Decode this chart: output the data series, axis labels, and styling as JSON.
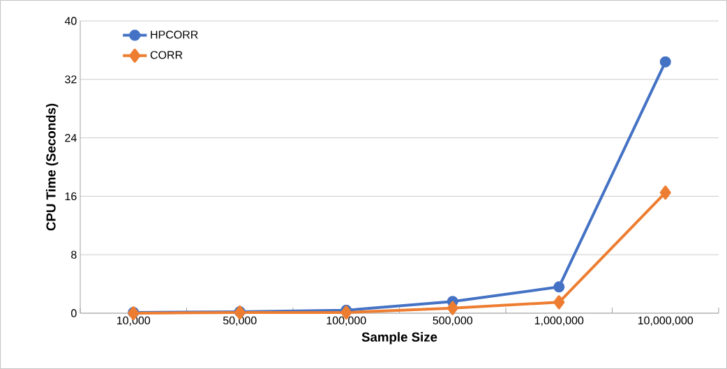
{
  "chart_data": {
    "type": "line",
    "xlabel": "Sample Size",
    "ylabel": "CPU Time (Seconds)",
    "categories": [
      "10,000",
      "50,000",
      "100,000",
      "500,000",
      "1,000,000",
      "10,000,000"
    ],
    "series": [
      {
        "name": "HPCORR",
        "color": "#4472c4",
        "marker": "circle",
        "values": [
          0.1,
          0.2,
          0.4,
          1.6,
          3.6,
          34.4
        ]
      },
      {
        "name": "CORR",
        "color": "#ed7d31",
        "marker": "diamond",
        "values": [
          0,
          0.1,
          0.1,
          0.7,
          1.5,
          16.5
        ]
      }
    ],
    "ylim": [
      0,
      40
    ],
    "yticks": [
      0,
      8,
      16,
      24,
      32,
      40
    ],
    "grid": "y",
    "legend": "top left",
    "line_style": "solid"
  }
}
